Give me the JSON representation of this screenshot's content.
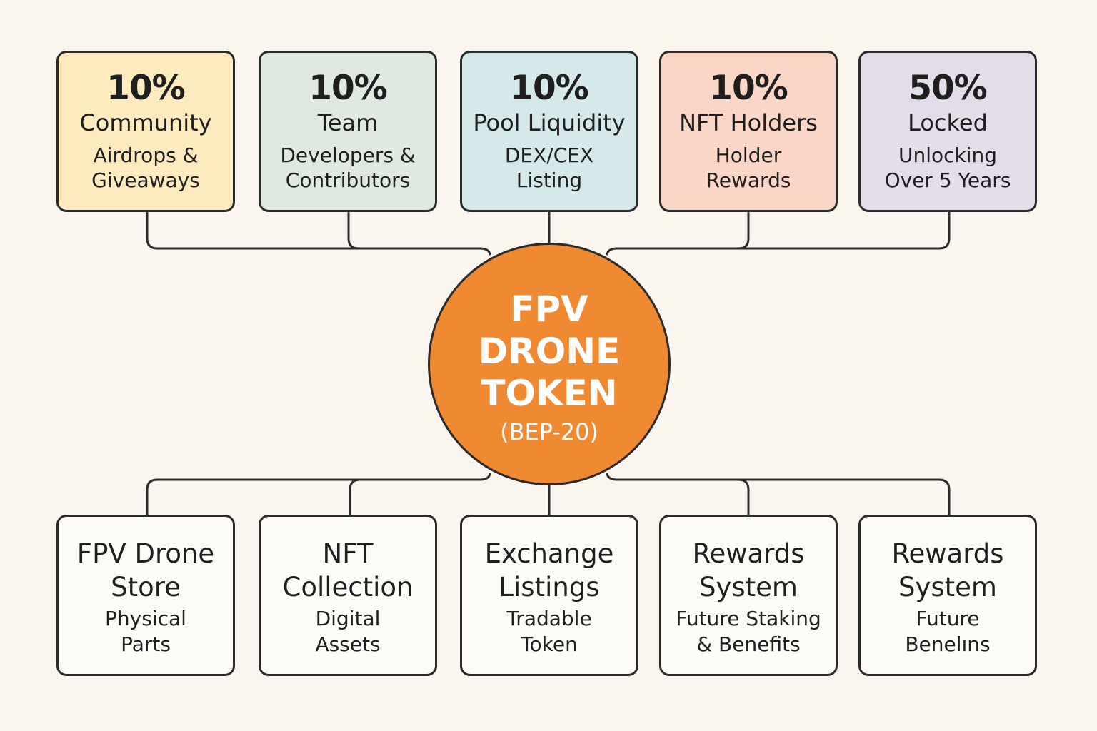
{
  "colors": {
    "background": "#faf6ef",
    "hub": "#ef8a33",
    "stroke": "#2b2b2b",
    "community": "#fdeabf",
    "team": "#dfe9df",
    "pool": "#d5e9ea",
    "nft": "#f9d6c5",
    "locked": "#e3dde9",
    "bottom": "#fdfbf6"
  },
  "hub": {
    "title": "FPV\nDRONE\nTOKEN",
    "subtitle": "(BEP-20)"
  },
  "allocations": [
    {
      "percent": "10%",
      "title": "Community",
      "description": "Airdrops &\nGiveaways"
    },
    {
      "percent": "10%",
      "title": "Team",
      "description": "Developers &\nContributors"
    },
    {
      "percent": "10%",
      "title": "Pool Liquidity",
      "description": "DEX/CEX\nListing"
    },
    {
      "percent": "10%",
      "title": "NFT Holders",
      "description": "Holder\nRewards"
    },
    {
      "percent": "50%",
      "title": "Locked",
      "description": "Unlocking\nOver 5 Years"
    }
  ],
  "utilities": [
    {
      "title": "FPV Drone\nStore",
      "description": "Physical\nParts"
    },
    {
      "title": "NFT\nCollection",
      "description": "Digital\nAssets"
    },
    {
      "title": "Exchange\nListings",
      "description": "Tradable\nToken"
    },
    {
      "title": "Rewards\nSystem",
      "description": "Future Staking\n& Benefits"
    },
    {
      "title": "Rewards\nSystem",
      "description": "Future\nBenelıns"
    }
  ]
}
